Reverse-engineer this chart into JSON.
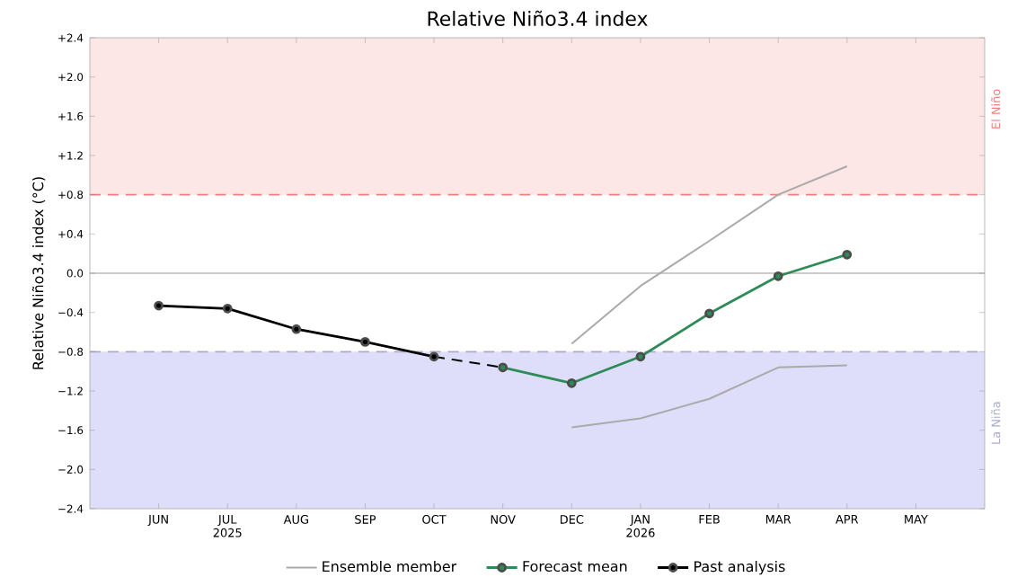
{
  "chart_data": {
    "type": "line",
    "title": "Relative Niño3.4 index",
    "ylabel": "Relative Niño3.4 index (°C)",
    "categories": [
      "JUN",
      "JUL 2025",
      "AUG",
      "SEP",
      "OCT",
      "NOV",
      "DEC",
      "JAN 2026",
      "FEB",
      "MAR",
      "APR",
      "MAY"
    ],
    "ylim": [
      -2.4,
      2.4
    ],
    "yticks": [
      {
        "value": 2.4,
        "label": "+2.4"
      },
      {
        "value": 2.0,
        "label": "+2.0"
      },
      {
        "value": 1.6,
        "label": "+1.6"
      },
      {
        "value": 1.2,
        "label": "+1.2"
      },
      {
        "value": 0.8,
        "label": "+0.8"
      },
      {
        "value": 0.4,
        "label": "+0.4"
      },
      {
        "value": 0.0,
        "label": "0.0"
      },
      {
        "value": -0.4,
        "label": "−0.4"
      },
      {
        "value": -0.8,
        "label": "−0.8"
      },
      {
        "value": -1.2,
        "label": "−1.2"
      },
      {
        "value": -1.6,
        "label": "−1.6"
      },
      {
        "value": -2.0,
        "label": "−2.0"
      },
      {
        "value": -2.4,
        "label": "−2.4"
      }
    ],
    "series": [
      {
        "name": "Ensemble member",
        "color": "#aaaaaa",
        "marker": "none",
        "values": [
          null,
          null,
          null,
          null,
          null,
          null,
          -0.72,
          -0.13,
          0.33,
          0.8,
          1.09,
          null
        ]
      },
      {
        "color": "#aaaaaa",
        "marker": "none",
        "values": [
          null,
          null,
          null,
          null,
          null,
          null,
          -1.57,
          -1.48,
          -1.28,
          -0.96,
          -0.94,
          null
        ]
      },
      {
        "name": "Forecast mean",
        "color": "#2e8b57",
        "values": [
          null,
          null,
          null,
          null,
          null,
          -0.96,
          -1.12,
          -0.85,
          -0.41,
          -0.03,
          0.19,
          null
        ]
      },
      {
        "name": "Past analysis",
        "color": "#000000",
        "values": [
          -0.33,
          -0.36,
          -0.57,
          -0.7,
          -0.85,
          null,
          null,
          null,
          null,
          null,
          null,
          null
        ]
      },
      {
        "color": "#000000",
        "line_style": "dashed",
        "marker": "none",
        "values": [
          null,
          null,
          null,
          null,
          -0.85,
          -0.96,
          null,
          null,
          null,
          null,
          null,
          null
        ]
      }
    ],
    "bands": [
      {
        "axis": "y",
        "from": 0.8,
        "to": 2.4,
        "label": "El Niño",
        "color": "#fde6e6"
      },
      {
        "axis": "y",
        "from": -2.4,
        "to": -0.8,
        "label": "La Niña",
        "color": "#dedefa"
      }
    ],
    "ref_lines": [
      {
        "axis": "y",
        "value": 0.8,
        "color": "#f08080",
        "line_style": "dashed"
      },
      {
        "axis": "y",
        "value": -0.8,
        "color": "#aaaacc",
        "line_style": "dashed"
      },
      {
        "axis": "y",
        "value": 0.0,
        "color": "#cccccc",
        "line_style": "solid"
      }
    ],
    "marker": "circle",
    "line_style": "solid",
    "grid": false,
    "legend": "bottom"
  }
}
